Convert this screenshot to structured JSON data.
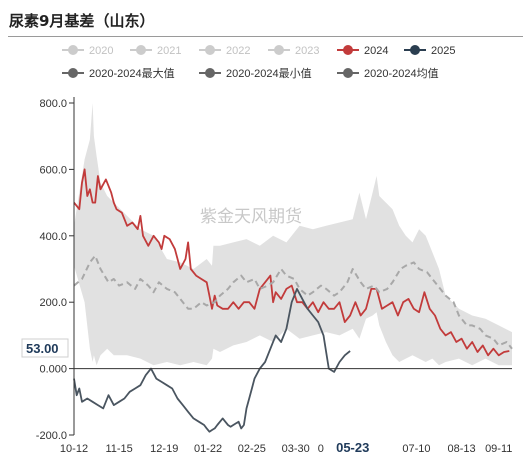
{
  "title": "尿素9月基差（山东）",
  "watermark": "紫金天风期货",
  "last_value_label": "53.00",
  "chart_data": {
    "type": "line",
    "title": "尿素9月基差（山东）",
    "xlabel": "",
    "ylabel": "",
    "ylim": [
      -200,
      800
    ],
    "y_ticks": [
      "800.0",
      "600.0",
      "400.0",
      "200.0",
      "0.000",
      "-200.0"
    ],
    "x_ticks": [
      {
        "label": "10-12",
        "pos": 0
      },
      {
        "label": "11-15",
        "pos": 34
      },
      {
        "label": "12-19",
        "pos": 68
      },
      {
        "label": "01-22",
        "pos": 101
      },
      {
        "label": "02-25",
        "pos": 134
      },
      {
        "label": "03-30",
        "pos": 167
      },
      {
        "label": "0",
        "pos": 186
      },
      {
        "label": "05-23",
        "pos": 210,
        "highlight": true
      },
      {
        "label": "07-10",
        "pos": 258
      },
      {
        "label": "08-13",
        "pos": 292
      },
      {
        "label": "09-11",
        "pos": 320
      }
    ],
    "x_range": [
      0,
      330
    ],
    "legend": {
      "placement": "top",
      "items": [
        {
          "name": "2020",
          "color": "#cccccc",
          "style": "line-dot",
          "visible": false
        },
        {
          "name": "2021",
          "color": "#cccccc",
          "style": "line-dot",
          "visible": false
        },
        {
          "name": "2022",
          "color": "#cccccc",
          "style": "line-dot",
          "visible": false
        },
        {
          "name": "2023",
          "color": "#cccccc",
          "style": "line-dot",
          "visible": false
        },
        {
          "name": "2024",
          "color": "#c23b3b",
          "style": "line-dot",
          "visible": true
        },
        {
          "name": "2025",
          "color": "#2b3e50",
          "style": "line-dot",
          "visible": true
        },
        {
          "name": "2020-2024最大值",
          "color": "#666666",
          "style": "line-dot",
          "visible": true
        },
        {
          "name": "2020-2024最小值",
          "color": "#666666",
          "style": "line-dot",
          "visible": true
        },
        {
          "name": "2020-2024均值",
          "color": "#666666",
          "style": "line-dot",
          "visible": true
        }
      ]
    },
    "band": {
      "name": "2020-2024 range",
      "color": "#e1e1e1",
      "x": [
        0,
        8,
        12,
        14,
        15,
        17,
        20,
        25,
        30,
        40,
        50,
        60,
        70,
        80,
        90,
        100,
        104,
        105,
        110,
        120,
        130,
        140,
        150,
        160,
        170,
        180,
        190,
        200,
        210,
        215,
        220,
        225,
        228,
        230,
        235,
        240,
        245,
        250,
        255,
        260,
        265,
        270,
        275,
        280,
        290,
        300,
        310,
        320,
        330
      ],
      "max": [
        430,
        630,
        690,
        800,
        700,
        640,
        560,
        520,
        500,
        460,
        420,
        400,
        330,
        320,
        300,
        330,
        310,
        370,
        370,
        380,
        390,
        370,
        400,
        380,
        430,
        420,
        430,
        440,
        450,
        530,
        450,
        530,
        580,
        520,
        500,
        480,
        430,
        400,
        380,
        420,
        400,
        350,
        300,
        220,
        180,
        160,
        150,
        130,
        110
      ],
      "min": [
        310,
        200,
        60,
        20,
        40,
        10,
        40,
        60,
        40,
        40,
        30,
        10,
        20,
        10,
        20,
        10,
        30,
        60,
        50,
        70,
        80,
        100,
        80,
        120,
        90,
        100,
        110,
        100,
        120,
        90,
        150,
        160,
        170,
        130,
        80,
        40,
        20,
        30,
        40,
        30,
        20,
        30,
        10,
        20,
        30,
        10,
        30,
        10,
        10
      ]
    },
    "series": [
      {
        "name": "2024",
        "color": "#c23b3b",
        "x": [
          0,
          4,
          6,
          8,
          10,
          12,
          14,
          16,
          18,
          20,
          24,
          28,
          30,
          32,
          36,
          40,
          44,
          48,
          50,
          52,
          56,
          60,
          64,
          66,
          68,
          72,
          76,
          80,
          84,
          86,
          88,
          92,
          96,
          100,
          102,
          104,
          106,
          108,
          112,
          116,
          120,
          124,
          128,
          132,
          136,
          140,
          144,
          148,
          150,
          152,
          156,
          160,
          164,
          168,
          172,
          176,
          180,
          184,
          188,
          192,
          196,
          200,
          204,
          208,
          212,
          216,
          220,
          224,
          228,
          232,
          236,
          240,
          244,
          248,
          252,
          256,
          260,
          264,
          268,
          272,
          276,
          280,
          284,
          288,
          292,
          296,
          300,
          304,
          308,
          312,
          316,
          320,
          324,
          328
        ],
        "values": [
          500,
          480,
          560,
          600,
          520,
          540,
          500,
          500,
          580,
          540,
          570,
          530,
          500,
          480,
          470,
          430,
          440,
          420,
          460,
          400,
          370,
          400,
          380,
          360,
          400,
          390,
          360,
          300,
          330,
          380,
          300,
          280,
          270,
          260,
          220,
          180,
          220,
          190,
          180,
          180,
          200,
          180,
          200,
          200,
          180,
          240,
          260,
          280,
          200,
          230,
          210,
          240,
          250,
          200,
          200,
          180,
          200,
          170,
          200,
          180,
          180,
          200,
          140,
          160,
          200,
          160,
          180,
          240,
          240,
          180,
          190,
          200,
          160,
          200,
          210,
          180,
          170,
          230,
          180,
          160,
          120,
          100,
          110,
          80,
          90,
          60,
          80,
          50,
          70,
          40,
          60,
          40,
          50,
          53
        ]
      },
      {
        "name": "2025",
        "color": "#4a5560",
        "x": [
          0,
          2,
          4,
          6,
          10,
          14,
          18,
          22,
          26,
          30,
          34,
          38,
          42,
          46,
          50,
          54,
          58,
          62,
          66,
          70,
          74,
          78,
          82,
          86,
          90,
          94,
          98,
          100,
          102,
          104,
          106,
          108,
          110,
          112,
          114,
          116,
          118,
          120,
          122,
          124,
          126,
          128,
          130,
          132,
          134,
          136,
          140,
          144,
          148,
          152,
          156,
          160,
          164,
          168,
          172,
          176,
          180,
          184,
          188,
          192,
          196,
          200,
          204,
          208
        ],
        "values": [
          -30,
          -80,
          -60,
          -100,
          -90,
          -100,
          -110,
          -120,
          -80,
          -110,
          -100,
          -90,
          -70,
          -60,
          -50,
          -20,
          0,
          -30,
          -40,
          -50,
          -60,
          -90,
          -110,
          -130,
          -150,
          -160,
          -170,
          -180,
          -190,
          -185,
          -180,
          -170,
          -160,
          -150,
          -160,
          -170,
          -175,
          -170,
          -165,
          -160,
          -180,
          -170,
          -120,
          -90,
          -60,
          -30,
          0,
          20,
          60,
          100,
          80,
          120,
          200,
          240,
          210,
          180,
          160,
          140,
          100,
          0,
          -10,
          20,
          40,
          53
        ]
      },
      {
        "name": "2020-2024均值",
        "color": "#a8a8a8",
        "dashed": true,
        "x": [
          0,
          6,
          12,
          16,
          20,
          26,
          30,
          34,
          40,
          46,
          50,
          56,
          60,
          64,
          70,
          76,
          80,
          86,
          90,
          96,
          100,
          106,
          110,
          116,
          120,
          126,
          130,
          136,
          140,
          146,
          150,
          156,
          160,
          166,
          170,
          176,
          180,
          186,
          190,
          196,
          200,
          206,
          210,
          216,
          220,
          226,
          230,
          236,
          240,
          246,
          250,
          256,
          260,
          266,
          270,
          276,
          280,
          286,
          290,
          296,
          300,
          306,
          310,
          316,
          320,
          326,
          330
        ],
        "values": [
          250,
          270,
          320,
          340,
          300,
          260,
          270,
          250,
          260,
          240,
          270,
          250,
          230,
          260,
          240,
          230,
          210,
          180,
          180,
          200,
          190,
          200,
          220,
          240,
          260,
          280,
          260,
          270,
          240,
          250,
          260,
          300,
          280,
          270,
          240,
          220,
          230,
          250,
          240,
          220,
          230,
          260,
          300,
          260,
          240,
          250,
          230,
          240,
          260,
          300,
          310,
          320,
          300,
          290,
          270,
          240,
          220,
          200,
          160,
          130,
          130,
          120,
          100,
          90,
          70,
          80,
          60
        ]
      }
    ]
  }
}
